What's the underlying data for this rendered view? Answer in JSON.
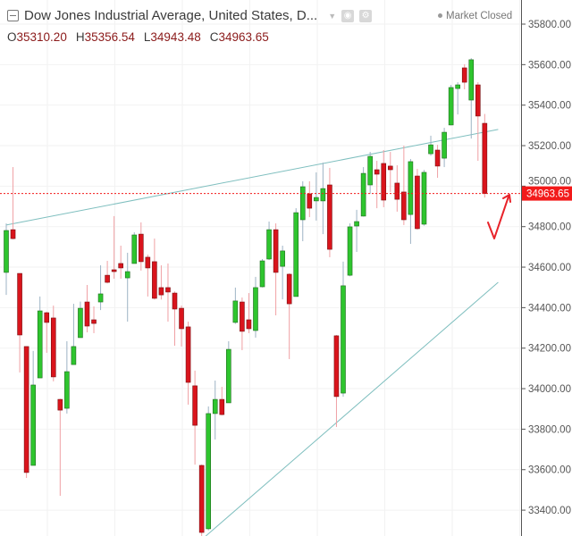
{
  "header": {
    "title": "Dow Jones Industrial Average, United States, D...",
    "status": "Market Closed",
    "ohlc": [
      {
        "label": "O",
        "value": "35310.20"
      },
      {
        "label": "H",
        "value": "35356.54"
      },
      {
        "label": "L",
        "value": "34943.48"
      },
      {
        "label": "C",
        "value": "34963.65"
      }
    ],
    "icons": [
      "collapse-icon",
      "dropdown-caret-icon",
      "eye-icon",
      "gear-icon"
    ]
  },
  "chart_data": {
    "type": "candlestick",
    "title": "Dow Jones Industrial Average, United States, D...",
    "ylim": [
      33300,
      35850
    ],
    "y_ticks": [
      "35800.00",
      "35600.00",
      "35400.00",
      "35200.00",
      "35000.00",
      "34800.00",
      "34600.00",
      "34400.00",
      "34200.00",
      "34000.00",
      "33800.00",
      "33600.00",
      "33400.00"
    ],
    "y_axis_position": "right",
    "grid": true,
    "last_price": "34963.65",
    "colors": {
      "up": "#2ec52e",
      "down": "#d9141c",
      "trendline": "#7fbfbf",
      "last_price": "#f21a1a"
    },
    "candles": [
      [
        34574,
        34816,
        34463,
        34781
      ],
      [
        34785,
        35094,
        34737,
        34741
      ],
      [
        34569,
        34569,
        34080,
        34265
      ],
      [
        34208,
        34208,
        33559,
        33586
      ],
      [
        33621,
        34186,
        33621,
        34018
      ],
      [
        34053,
        34455,
        34053,
        34384
      ],
      [
        34375,
        34380,
        34177,
        34327
      ],
      [
        34349,
        34410,
        34036,
        34058
      ],
      [
        33947,
        33950,
        33471,
        33894
      ],
      [
        33903,
        34234,
        33877,
        34084
      ],
      [
        34119,
        34419,
        34119,
        34208
      ],
      [
        34252,
        34430,
        34252,
        34397
      ],
      [
        34428,
        34512,
        34278,
        34309
      ],
      [
        34340,
        34406,
        34274,
        34322
      ],
      [
        34428,
        34609,
        34388,
        34468
      ],
      [
        34560,
        34631,
        34520,
        34525
      ],
      [
        34587,
        34852,
        34543,
        34578
      ],
      [
        34618,
        34706,
        34543,
        34596
      ],
      [
        34547,
        34671,
        34331,
        34578
      ],
      [
        34618,
        34772,
        34618,
        34759
      ],
      [
        34763,
        34821,
        34583,
        34627
      ],
      [
        34649,
        34662,
        34455,
        34596
      ],
      [
        34627,
        34741,
        34440,
        34446
      ],
      [
        34499,
        34609,
        34440,
        34463
      ],
      [
        34499,
        34618,
        34331,
        34477
      ],
      [
        34472,
        34480,
        34212,
        34393
      ],
      [
        34397,
        34410,
        34208,
        34296
      ],
      [
        34305,
        34331,
        33921,
        34031
      ],
      [
        34014,
        34089,
        33625,
        33819
      ],
      [
        33621,
        33625,
        33270,
        33290
      ],
      [
        33308,
        33912,
        33300,
        33877
      ],
      [
        33877,
        34040,
        33749,
        33947
      ],
      [
        33947,
        34009,
        33868,
        33872
      ],
      [
        33930,
        34234,
        33930,
        34194
      ],
      [
        34327,
        34499,
        34320,
        34433
      ],
      [
        34428,
        34450,
        34190,
        34283
      ],
      [
        34340,
        34472,
        34274,
        34296
      ],
      [
        34287,
        34552,
        34252,
        34499
      ],
      [
        34503,
        34640,
        34500,
        34631
      ],
      [
        34640,
        34825,
        34635,
        34785
      ],
      [
        34785,
        34816,
        34362,
        34574
      ],
      [
        34604,
        34706,
        34441,
        34680
      ],
      [
        34565,
        34570,
        34146,
        34419
      ],
      [
        34455,
        34891,
        34455,
        34869
      ],
      [
        34834,
        35024,
        34728,
        34997
      ],
      [
        34962,
        35024,
        34847,
        34891
      ],
      [
        34927,
        35068,
        34830,
        34944
      ],
      [
        34927,
        35116,
        34763,
        34988
      ],
      [
        35006,
        35090,
        34649,
        34688
      ],
      [
        34261,
        34265,
        33811,
        33961
      ],
      [
        33978,
        34627,
        33960,
        34508
      ],
      [
        34560,
        34816,
        34555,
        34799
      ],
      [
        34803,
        34883,
        34675,
        34825
      ],
      [
        34852,
        35094,
        34850,
        35063
      ],
      [
        35006,
        35169,
        34962,
        35147
      ],
      [
        35081,
        35125,
        34891,
        35059
      ],
      [
        35112,
        35178,
        34896,
        34931
      ],
      [
        35099,
        35169,
        34971,
        35081
      ],
      [
        35015,
        35103,
        34874,
        34935
      ],
      [
        34971,
        35200,
        34808,
        34834
      ],
      [
        34860,
        35134,
        34715,
        35121
      ],
      [
        35050,
        35085,
        34785,
        34790
      ],
      [
        34812,
        35080,
        34805,
        35068
      ],
      [
        35160,
        35249,
        35150,
        35204
      ],
      [
        35178,
        35204,
        35041,
        35099
      ],
      [
        35138,
        35288,
        35094,
        35266
      ],
      [
        35302,
        35500,
        35300,
        35487
      ],
      [
        35482,
        35513,
        35354,
        35500
      ],
      [
        35584,
        35602,
        35478,
        35513
      ],
      [
        35425,
        35632,
        35235,
        35624
      ],
      [
        35500,
        35513,
        35125,
        35346
      ],
      [
        35310.2,
        35356.54,
        34943.48,
        34963.65
      ]
    ],
    "trendlines": [
      {
        "from": [
          0,
          34808
        ],
        "to": [
          73,
          35280
        ]
      },
      {
        "from": [
          29.6,
          33272
        ],
        "to": [
          73,
          34525
        ]
      }
    ]
  }
}
